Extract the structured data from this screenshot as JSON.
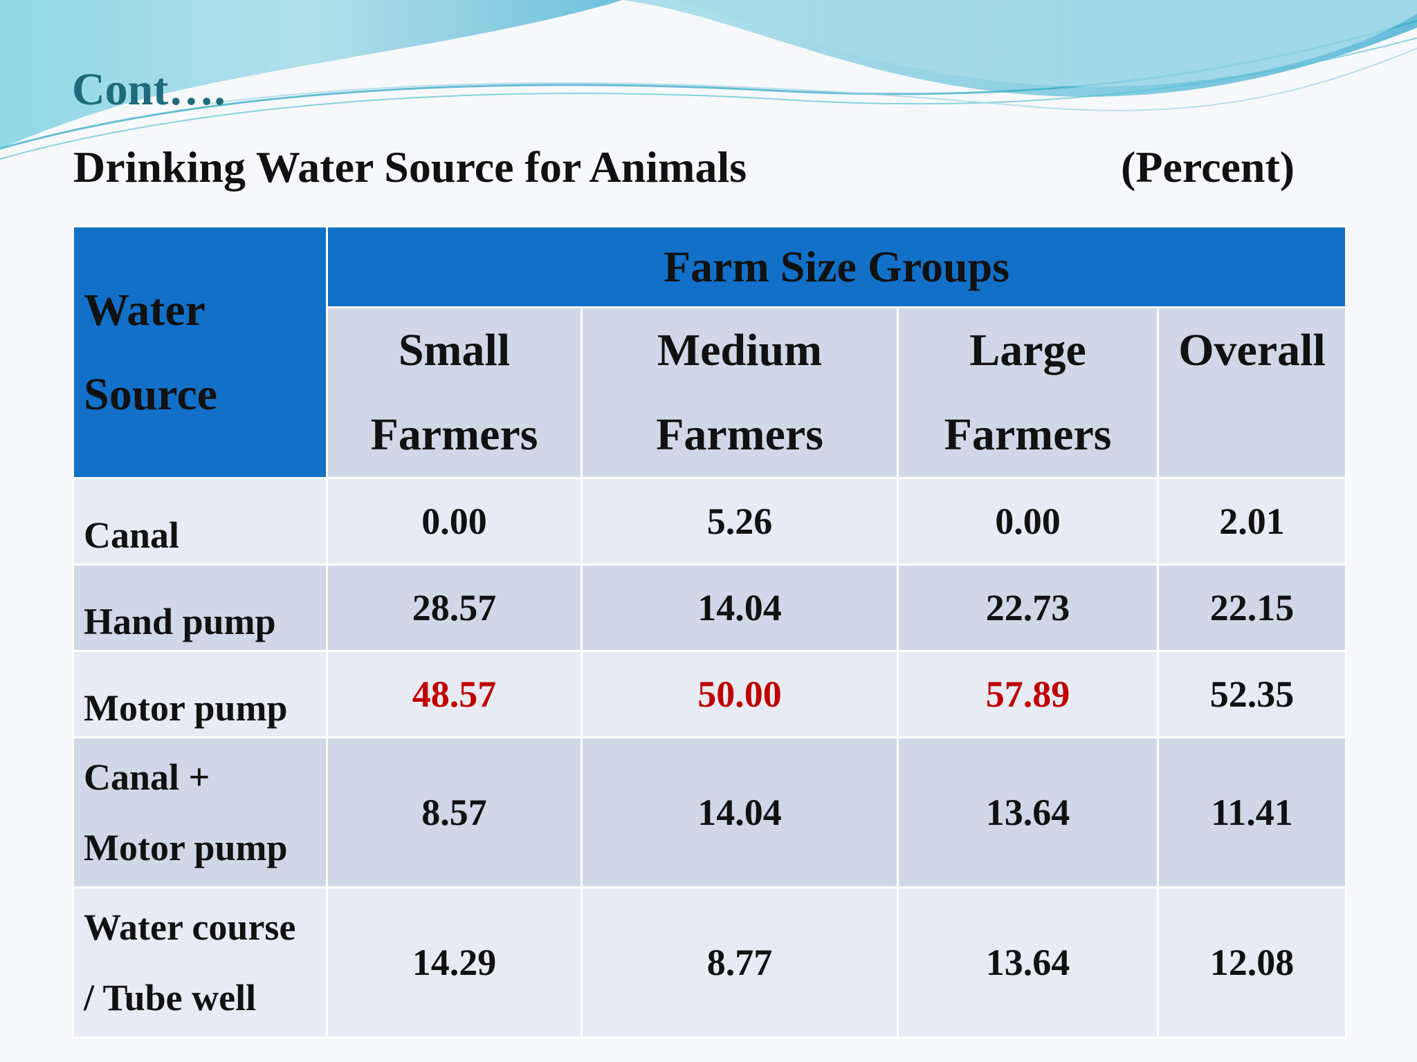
{
  "slide": {
    "title": "Cont….",
    "subtitle": "Drinking Water Source for Animals",
    "unit": "(Percent)"
  },
  "colors": {
    "header_blue": "#1270c9",
    "row_light": "#e8ebf3",
    "row_dark": "#d0d7e7",
    "highlight_red": "#c00000",
    "title_teal": "#1f6b7b"
  },
  "table": {
    "corner_header": [
      "Water",
      "Source"
    ],
    "group_header": "Farm Size Groups",
    "columns": [
      [
        "Small",
        "Farmers"
      ],
      [
        "Medium",
        "Farmers"
      ],
      [
        "Large",
        "Farmers"
      ],
      [
        "Overall"
      ]
    ],
    "rows": [
      {
        "label": [
          "Canal"
        ],
        "values": [
          "0.00",
          "5.26",
          "0.00",
          "2.01"
        ]
      },
      {
        "label": [
          "Hand pump"
        ],
        "values": [
          "28.57",
          "14.04",
          "22.73",
          "22.15"
        ]
      },
      {
        "label": [
          "Motor pump"
        ],
        "values": [
          "48.57",
          "50.00",
          "57.89",
          "52.35"
        ]
      },
      {
        "label": [
          "Canal +",
          "Motor pump"
        ],
        "values": [
          "8.57",
          "14.04",
          "13.64",
          "11.41"
        ]
      },
      {
        "label": [
          "Water course",
          "/ Tube well"
        ],
        "values": [
          "14.29",
          "8.77",
          "13.64",
          "12.08"
        ]
      }
    ]
  }
}
